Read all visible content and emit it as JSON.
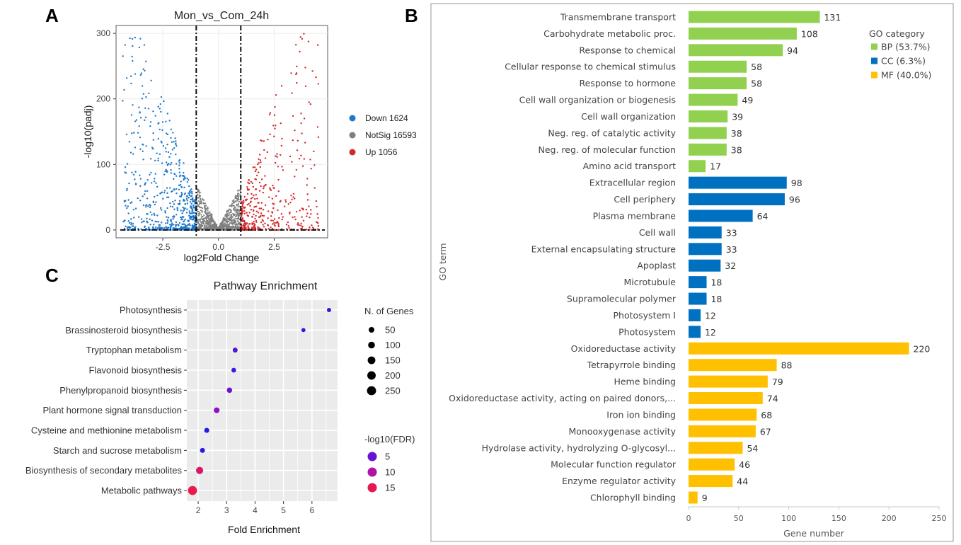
{
  "panel_letters": {
    "a": "A",
    "b": "B",
    "c": "C"
  },
  "chart_data": [
    {
      "id": "volcano",
      "type": "scatter",
      "title": "Mon_vs_Com_24h",
      "xlabel": "log2Fold Change",
      "ylabel": "-log10(padj)",
      "xlim": [
        -4.6,
        4.9
      ],
      "ylim": [
        -12,
        312
      ],
      "xticks": [
        -2.5,
        0.0,
        2.5
      ],
      "xtick_labels": [
        "-2.5",
        "0.0",
        "2.5"
      ],
      "yticks": [
        0,
        100,
        200,
        300
      ],
      "ytick_labels": [
        "0",
        "100",
        "200",
        "300"
      ],
      "fc_threshold": [
        -1,
        1
      ],
      "padj_threshold_line": 0,
      "legend": [
        {
          "label": "Down 1624",
          "color": "#1f77c8"
        },
        {
          "label": "NotSig 16593",
          "color": "#7f7f7f"
        },
        {
          "label": "Up 1056",
          "color": "#d62728"
        }
      ],
      "series": [
        {
          "name": "Down",
          "count": 1624,
          "x_range": [
            -4.3,
            -1.0
          ],
          "y_range": [
            0,
            300
          ]
        },
        {
          "name": "NotSig",
          "count": 16593,
          "x_range": [
            -1.0,
            1.0
          ],
          "y_range": [
            0,
            70
          ]
        },
        {
          "name": "Up",
          "count": 1056,
          "x_range": [
            1.0,
            4.5
          ],
          "y_range": [
            0,
            290
          ]
        }
      ]
    },
    {
      "id": "pathway",
      "type": "scatter",
      "title": "Pathway Enrichment",
      "xlabel": "Fold Enrichment",
      "ylabel": "",
      "xlim": [
        1.6,
        6.9
      ],
      "xticks": [
        2,
        3,
        4,
        5,
        6
      ],
      "xtick_labels": [
        "2",
        "3",
        "4",
        "5",
        "6"
      ],
      "categories": [
        "Photosynthesis",
        "Brassinosteroid biosynthesis",
        "Tryptophan metabolism",
        "Flavonoid biosynthesis",
        "Phenylpropanoid biosynthesis",
        "Plant hormone signal transduction",
        "Cysteine and methionine metabolism",
        "Starch and sucrose metabolism",
        "Biosynthesis of secondary metabolites",
        "Metabolic pathways"
      ],
      "fold_enrichment": [
        6.6,
        5.7,
        3.3,
        3.25,
        3.1,
        2.65,
        2.3,
        2.15,
        2.05,
        1.8
      ],
      "n_genes": [
        12,
        10,
        28,
        22,
        40,
        55,
        30,
        28,
        120,
        240
      ],
      "neg_log10_fdr": [
        3.5,
        3.0,
        5.0,
        4.0,
        7.0,
        9.0,
        2.5,
        2.5,
        15.5,
        17.0
      ],
      "size_legend_title": "N. of Genes",
      "size_legend": [
        "50",
        "100",
        "150",
        "200",
        "250"
      ],
      "color_legend_title": "-log10(FDR)",
      "color_legend": [
        "5",
        "10",
        "15"
      ]
    },
    {
      "id": "go",
      "type": "bar",
      "orientation": "horizontal",
      "xlabel": "Gene number",
      "ylabel": "GO term",
      "xlim": [
        0,
        250
      ],
      "xticks": [
        0,
        50,
        100,
        150,
        200,
        250
      ],
      "xtick_labels": [
        "0",
        "50",
        "100",
        "150",
        "200",
        "250"
      ],
      "legend_title": "GO category",
      "legend": [
        {
          "label": "BP (53.7%)",
          "color": "#92d050"
        },
        {
          "label": "CC (6.3%)",
          "color": "#0070c0"
        },
        {
          "label": "MF (40.0%)",
          "color": "#ffc000"
        }
      ],
      "categories": [
        "Transmembrane transport",
        "Carbohydrate metabolic proc.",
        "Response to chemical",
        "Cellular response to chemical stimulus",
        "Response to hormone",
        "Cell wall organization or biogenesis",
        "Cell wall organization",
        "Neg. reg. of catalytic activity",
        "Neg. reg. of molecular function",
        "Amino acid transport",
        "Extracellular region",
        "Cell periphery",
        "Plasma membrane",
        "Cell wall",
        "External encapsulating structure",
        "Apoplast",
        "Microtubule",
        "Supramolecular polymer",
        "Photosystem I",
        "Photosystem",
        "Oxidoreductase activity",
        "Tetrapyrrole binding",
        "Heme binding",
        "Oxidoreductase activity, acting on paired donors,...",
        "Iron ion binding",
        "Monooxygenase activity",
        "Hydrolase activity, hydrolyzing O-glycosyl...",
        "Molecular function regulator",
        "Enzyme regulator activity",
        "Chlorophyll binding"
      ],
      "values": [
        131,
        108,
        94,
        58,
        58,
        49,
        39,
        38,
        38,
        17,
        98,
        96,
        64,
        33,
        33,
        32,
        18,
        18,
        12,
        12,
        220,
        88,
        79,
        74,
        68,
        67,
        54,
        46,
        44,
        9
      ],
      "value_labels": [
        "131",
        "108",
        "94",
        "58",
        "58",
        "49",
        "39",
        "38",
        "38",
        "17",
        "98",
        "96",
        "64",
        "33",
        "33",
        "32",
        "18",
        "18",
        "12",
        "12",
        "220",
        "88",
        "79",
        "74",
        "68",
        "67",
        "54",
        "46",
        "44",
        "9"
      ],
      "groups": [
        "BP",
        "BP",
        "BP",
        "BP",
        "BP",
        "BP",
        "BP",
        "BP",
        "BP",
        "BP",
        "CC",
        "CC",
        "CC",
        "CC",
        "CC",
        "CC",
        "CC",
        "CC",
        "CC",
        "CC",
        "MF",
        "MF",
        "MF",
        "MF",
        "MF",
        "MF",
        "MF",
        "MF",
        "MF",
        "MF"
      ]
    }
  ]
}
